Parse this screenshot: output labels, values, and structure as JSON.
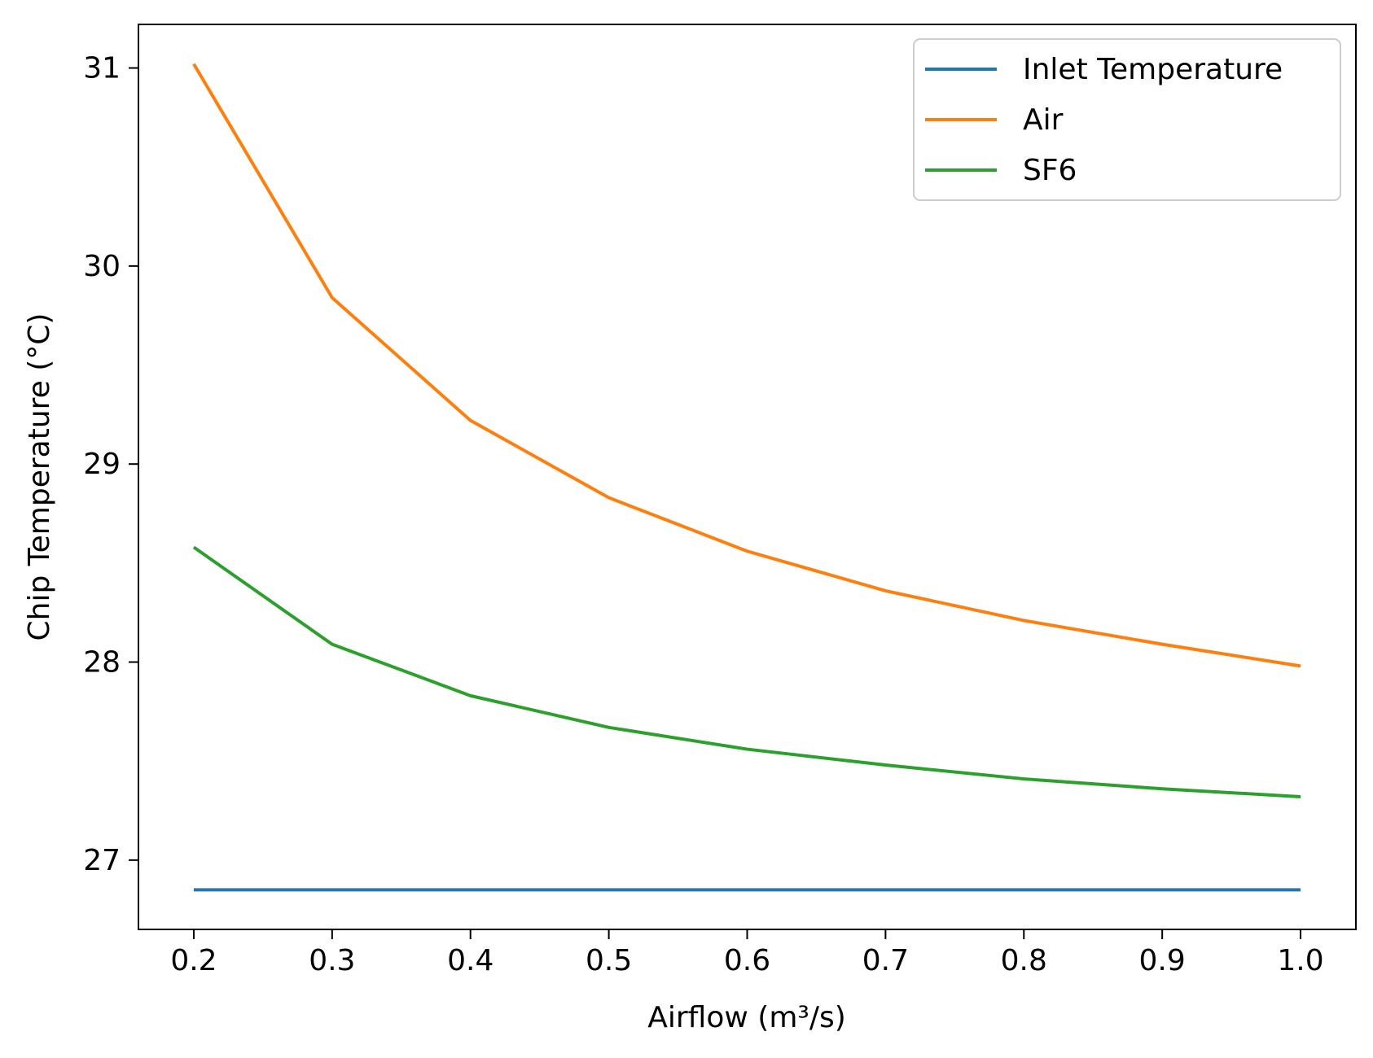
{
  "chart_data": {
    "type": "line",
    "title": "",
    "xlabel": "Airflow (m³/s)",
    "ylabel": "Chip Temperature (°C)",
    "x": [
      0.2,
      0.3,
      0.4,
      0.5,
      0.6,
      0.7,
      0.8,
      0.9,
      1.0
    ],
    "xlim": [
      0.16,
      1.04
    ],
    "ylim": [
      26.65,
      31.22
    ],
    "x_ticks": [
      "0.2",
      "0.3",
      "0.4",
      "0.5",
      "0.6",
      "0.7",
      "0.8",
      "0.9",
      "1.0"
    ],
    "y_ticks": [
      "27",
      "28",
      "29",
      "30",
      "31"
    ],
    "grid": false,
    "legend_position": "top-right",
    "series": [
      {
        "name": "Inlet Temperature",
        "color": "#1f77b4",
        "values": [
          26.85,
          26.85,
          26.85,
          26.85,
          26.85,
          26.85,
          26.85,
          26.85,
          26.85
        ]
      },
      {
        "name": "Air",
        "color": "#ff7f0e",
        "values": [
          31.02,
          29.84,
          29.22,
          28.83,
          28.56,
          28.36,
          28.21,
          28.09,
          27.98
        ]
      },
      {
        "name": "SF6",
        "color": "#2ca02c",
        "values": [
          28.58,
          28.09,
          27.83,
          27.67,
          27.56,
          27.48,
          27.41,
          27.36,
          27.32
        ]
      }
    ]
  }
}
